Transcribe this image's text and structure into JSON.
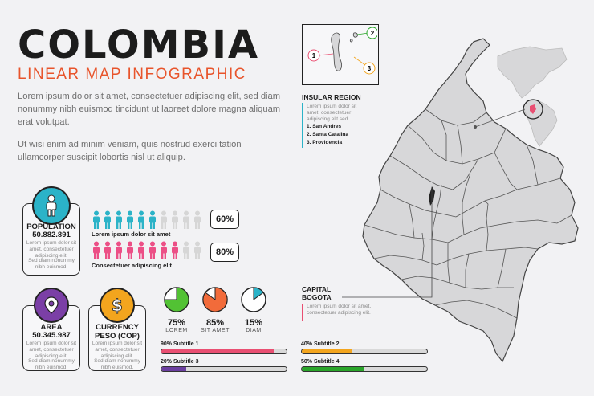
{
  "header": {
    "title": "COLOMBIA",
    "subtitle": "LINEAR MAP INFOGRAPHIC",
    "paragraph1": "Lorem ipsum dolor sit amet, consectetuer adipiscing elit, sed diam nonummy nibh euismod tincidunt ut laoreet dolore magna aliquam erat volutpat.",
    "paragraph2": "Ut wisi enim ad minim veniam, quis nostrud exerci tation ullamcorper suscipit lobortis nisl ut aliquip."
  },
  "population": {
    "label": "POPULATION",
    "value": "50.882.891",
    "desc1": "Lorem ipsum dolor sit amet, consectetuer adipiscing elit.",
    "desc2": "Sed diam nonummy nibh euismod."
  },
  "people_rows": [
    {
      "caption": "Lorem ipsum dolor sit amet",
      "percent": "60%",
      "filled": 6,
      "total": 10,
      "color": "#2bb3c8"
    },
    {
      "caption": "Consectetuer adipiscing elit",
      "percent": "80%",
      "filled": 8,
      "total": 10,
      "color": "#ec4f86"
    }
  ],
  "area": {
    "label": "AREA",
    "value": "50.345.987",
    "desc1": "Lorem ipsum dolor sit amet, consectetuer adipiscing elit.",
    "desc2": "Sed diam nonummy nibh euismod."
  },
  "currency": {
    "label": "CURRENCY PESO (COP)",
    "desc1": "Lorem ipsum dolor sit amet, consectetuer adipiscing elit.",
    "desc2": "Sed diam nonummy nibh euismod."
  },
  "stats": [
    {
      "value": "75%",
      "label": "LOREM",
      "fraction": 0.75,
      "color": "#52c234"
    },
    {
      "value": "85%",
      "label": "SIT AMET",
      "fraction": 0.85,
      "color": "#f26b3a"
    },
    {
      "value": "15%",
      "label": "DIAM",
      "fraction": 0.15,
      "color": "#2bb3c8"
    }
  ],
  "bars": [
    {
      "label": "90% Subtitle 1",
      "fraction": 0.9,
      "color": "#e94f72"
    },
    {
      "label": "40% Subtitle 2",
      "fraction": 0.4,
      "color": "#f3a51e"
    },
    {
      "label": "20% Subtitle 3",
      "fraction": 0.2,
      "color": "#6b3fa0"
    },
    {
      "label": "50% Subtitle 4",
      "fraction": 0.5,
      "color": "#2aa52a"
    }
  ],
  "insular": {
    "title": "INSULAR REGION",
    "desc": "Lorem ipsum dolor sit amet, consectetuer adipiscing elit sed.",
    "items": [
      "1. San Andres",
      "2. Santa Catalina",
      "3. Providencia"
    ],
    "markers": [
      "1",
      "2",
      "3"
    ]
  },
  "capital": {
    "title": "CAPITAL BOGOTA",
    "desc": "Lorem ipsum dolor sit amet, consectetuer adipiscing elit."
  },
  "colors": {
    "accent": "#e8542b",
    "map_fill": "#d7d7d9",
    "map_stroke": "#444444",
    "teal": "#2bb3c8",
    "pink": "#ec4f86",
    "purple": "#7b3fa6",
    "orange": "#f3a51e"
  }
}
